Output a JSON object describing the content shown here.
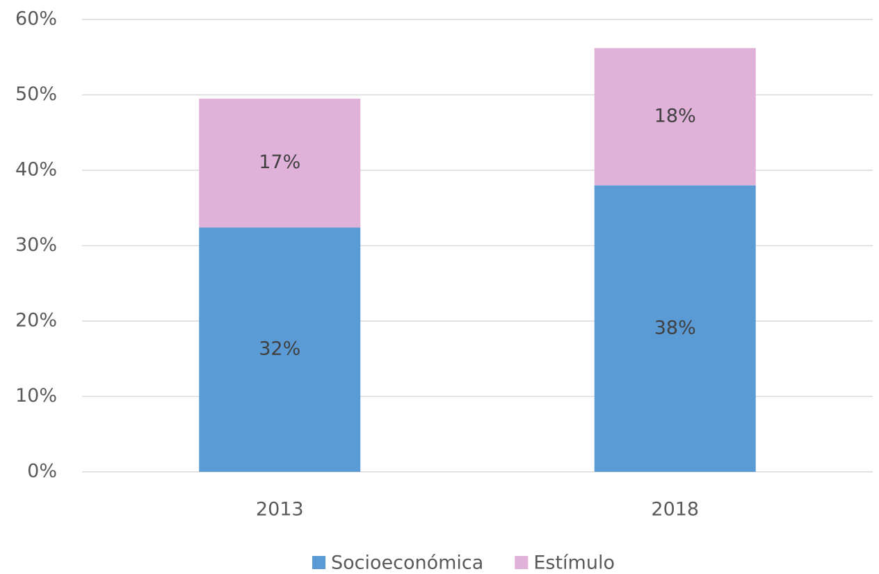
{
  "chart_data": {
    "type": "bar",
    "stacked": true,
    "categories": [
      "2013",
      "2018"
    ],
    "series": [
      {
        "name": "Socioeconómica",
        "color": "#5b9bd5",
        "values": [
          32.4,
          38.0
        ],
        "value_labels": [
          "32%",
          "38%"
        ]
      },
      {
        "name": "Estímulo",
        "color": "#e0b1d9",
        "values": [
          17.1,
          18.2
        ],
        "value_labels": [
          "17%",
          "18%"
        ]
      }
    ],
    "ylim": [
      0,
      60
    ],
    "yticks": [
      {
        "value": 0,
        "label": "0%"
      },
      {
        "value": 10,
        "label": "10%"
      },
      {
        "value": 20,
        "label": "20%"
      },
      {
        "value": 30,
        "label": "30%"
      },
      {
        "value": 40,
        "label": "40%"
      },
      {
        "value": 50,
        "label": "50%"
      },
      {
        "value": 60,
        "label": "60%"
      }
    ],
    "grid": true,
    "legend": "bottom"
  }
}
